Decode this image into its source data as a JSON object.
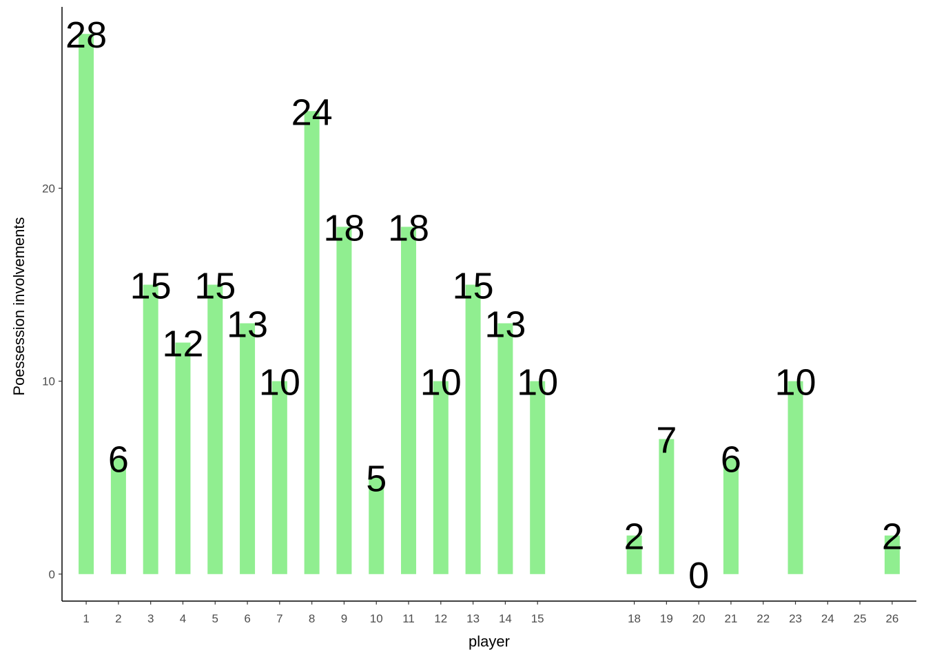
{
  "chart_data": {
    "type": "bar",
    "x": [
      1,
      2,
      3,
      4,
      5,
      6,
      7,
      8,
      9,
      10,
      11,
      12,
      13,
      14,
      15,
      18,
      19,
      20,
      21,
      23,
      26
    ],
    "values": [
      28,
      6,
      15,
      12,
      15,
      13,
      10,
      24,
      18,
      5,
      18,
      10,
      15,
      13,
      10,
      2,
      7,
      0,
      6,
      10,
      2
    ],
    "x_ticks": [
      1,
      2,
      3,
      4,
      5,
      6,
      7,
      8,
      9,
      10,
      11,
      12,
      13,
      14,
      15,
      18,
      19,
      20,
      21,
      22,
      23,
      24,
      25,
      26
    ],
    "y_ticks": [
      0,
      10,
      20
    ],
    "xlabel": "player",
    "ylabel": "Poessession involvements",
    "title": "",
    "ylim": [
      -1.4,
      29.4
    ],
    "xlim": [
      0.25,
      26.75
    ],
    "bar_color": "#90EE90",
    "grid": false,
    "legend": "none"
  }
}
